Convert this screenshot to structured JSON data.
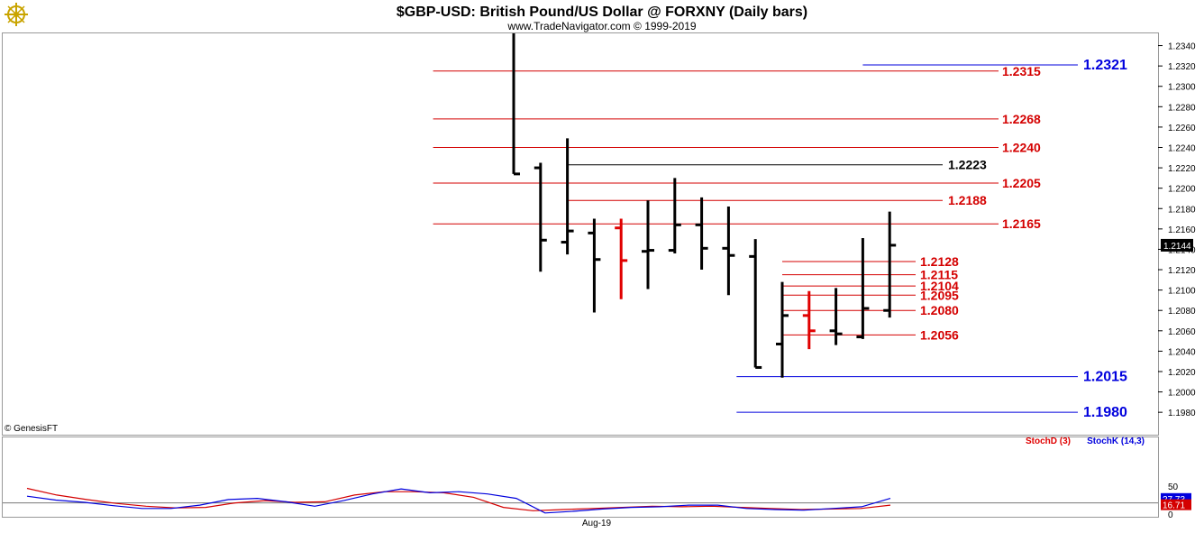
{
  "title": "$GBP-USD:  British Pound/US Dollar @ FORXNY  (Daily bars)",
  "subtitle": "www.TradeNavigator.com © 1999-2019",
  "copyright": "© GenesisFT",
  "logo_icon": "ship-wheel-logo-icon",
  "colors": {
    "up_bar": "#000000",
    "down_bar": "#e00000",
    "red_level": "#d40000",
    "black_level": "#000000",
    "blue_level": "#0000dd",
    "stoch_d": "#e00000",
    "stoch_k": "#0000dd"
  },
  "chart_data": [
    {
      "type": "ohlc",
      "title": "$GBP-USD:  British Pound/US Dollar @ FORXNY  (Daily bars)",
      "ylim": [
        1.1958,
        1.2352
      ],
      "yticks": [
        "1.2340",
        "1.2320",
        "1.2300",
        "1.2280",
        "1.2260",
        "1.2240",
        "1.2220",
        "1.2200",
        "1.2180",
        "1.2160",
        "1.2140",
        "1.2120",
        "1.2100",
        "1.2080",
        "1.2060",
        "1.2040",
        "1.2020",
        "1.2000",
        "1.1980"
      ],
      "last_price": "1.2144",
      "bars": [
        {
          "o": 1.24,
          "h": 1.24,
          "l": 1.2214,
          "c": 1.2214,
          "color": "black"
        },
        {
          "o": 1.222,
          "h": 1.2225,
          "l": 1.2118,
          "c": 1.2149,
          "color": "black"
        },
        {
          "o": 1.2147,
          "h": 1.2249,
          "l": 1.2135,
          "c": 1.2158,
          "color": "black"
        },
        {
          "o": 1.2156,
          "h": 1.217,
          "l": 1.2078,
          "c": 1.213,
          "color": "black"
        },
        {
          "o": 1.2161,
          "h": 1.217,
          "l": 1.2091,
          "c": 1.2129,
          "color": "red"
        },
        {
          "o": 1.2138,
          "h": 1.2188,
          "l": 1.2101,
          "c": 1.2139,
          "color": "black"
        },
        {
          "o": 1.2139,
          "h": 1.221,
          "l": 1.2136,
          "c": 1.2164,
          "color": "black"
        },
        {
          "o": 1.2164,
          "h": 1.2191,
          "l": 1.212,
          "c": 1.2141,
          "color": "black"
        },
        {
          "o": 1.2141,
          "h": 1.2182,
          "l": 1.2095,
          "c": 1.2134,
          "color": "black"
        },
        {
          "o": 1.2133,
          "h": 1.215,
          "l": 1.2024,
          "c": 1.2024,
          "color": "black"
        },
        {
          "o": 1.2047,
          "h": 1.2108,
          "l": 1.2014,
          "c": 1.2075,
          "color": "black"
        },
        {
          "o": 1.2075,
          "h": 1.2099,
          "l": 1.2042,
          "c": 1.206,
          "color": "red"
        },
        {
          "o": 1.206,
          "h": 1.2102,
          "l": 1.2046,
          "c": 1.2057,
          "color": "black"
        },
        {
          "o": 1.2054,
          "h": 1.2151,
          "l": 1.2052,
          "c": 1.2082,
          "color": "black"
        },
        {
          "o": 1.208,
          "h": 1.2177,
          "l": 1.2073,
          "c": 1.2144,
          "color": "black"
        }
      ],
      "levels": [
        {
          "value": 1.2321,
          "label": "1.2321",
          "color": "blue",
          "start_bar": 13.0,
          "label_pos": "far",
          "size": "big"
        },
        {
          "value": 1.2315,
          "label": "1.2315",
          "color": "red",
          "start_bar": -3.0,
          "label_pos": "mid"
        },
        {
          "value": 1.2268,
          "label": "1.2268",
          "color": "red",
          "start_bar": -3.0,
          "label_pos": "mid"
        },
        {
          "value": 1.224,
          "label": "1.2240",
          "color": "red",
          "start_bar": -3.0,
          "label_pos": "mid"
        },
        {
          "value": 1.2223,
          "label": "1.2223",
          "color": "black",
          "start_bar": 2.0,
          "label_pos": "near"
        },
        {
          "value": 1.2205,
          "label": "1.2205",
          "color": "red",
          "start_bar": -3.0,
          "label_pos": "mid"
        },
        {
          "value": 1.2188,
          "label": "1.2188",
          "color": "red",
          "start_bar": 2.0,
          "label_pos": "near"
        },
        {
          "value": 1.2165,
          "label": "1.2165",
          "color": "red",
          "start_bar": -3.0,
          "label_pos": "mid"
        },
        {
          "value": 1.2128,
          "label": "1.2128",
          "color": "red",
          "start_bar": 10.0,
          "label_pos": "short"
        },
        {
          "value": 1.2115,
          "label": "1.2115",
          "color": "red",
          "start_bar": 10.0,
          "label_pos": "short"
        },
        {
          "value": 1.2104,
          "label": "1.2104",
          "color": "red",
          "start_bar": 10.0,
          "label_pos": "short"
        },
        {
          "value": 1.2095,
          "label": "1.2095",
          "color": "red",
          "start_bar": 10.0,
          "label_pos": "short"
        },
        {
          "value": 1.208,
          "label": "1.2080",
          "color": "red",
          "start_bar": 10.0,
          "label_pos": "short"
        },
        {
          "value": 1.2056,
          "label": "1.2056",
          "color": "red",
          "start_bar": 10.0,
          "label_pos": "short"
        },
        {
          "value": 1.2015,
          "label": "1.2015",
          "color": "blue",
          "start_bar": 8.3,
          "label_pos": "far",
          "size": "big"
        },
        {
          "value": 1.198,
          "label": "1.1980",
          "color": "blue",
          "start_bar": 8.3,
          "label_pos": "far",
          "size": "big"
        }
      ]
    },
    {
      "type": "line",
      "ylim": [
        0,
        100
      ],
      "yticks": [
        "50",
        "0"
      ],
      "reference_line": 20,
      "x_label": "Aug-19",
      "badges": [
        {
          "label": "27.73",
          "value": 27.73,
          "color": "blue"
        },
        {
          "label": "16.71",
          "value": 16.71,
          "color": "red"
        }
      ],
      "series": [
        {
          "name": "StochD (3)",
          "color": "red",
          "values": [
            46,
            34,
            26,
            19,
            14,
            11,
            12,
            20,
            24,
            21,
            22,
            34,
            40,
            40,
            38,
            30,
            12,
            6,
            8,
            10,
            12,
            14,
            13,
            14,
            12,
            10,
            8,
            9,
            10,
            16
          ]
        },
        {
          "name": "StochK (14,3)",
          "color": "blue",
          "values": [
            32,
            25,
            21,
            15,
            10,
            10,
            16,
            26,
            28,
            22,
            14,
            24,
            36,
            45,
            38,
            40,
            36,
            28,
            2,
            5,
            9,
            12,
            13,
            16,
            16,
            10,
            8,
            7,
            10,
            13,
            28
          ]
        }
      ]
    }
  ]
}
